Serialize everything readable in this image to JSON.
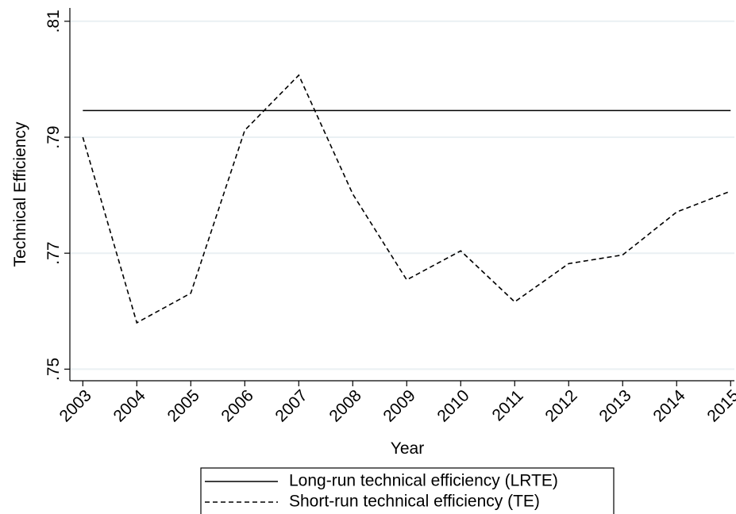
{
  "chart_data": {
    "type": "line",
    "ylabel": "Technical Efficiency",
    "xlabel": "Year",
    "x": [
      2003,
      2004,
      2005,
      2006,
      2007,
      2008,
      2009,
      2010,
      2011,
      2012,
      2013,
      2014,
      2015
    ],
    "series": [
      {
        "name": "Long-run technical efficiency (LRTE)",
        "color": "#000000",
        "line_style": "solid",
        "values": [
          0.7946,
          0.7946,
          0.7946,
          0.7946,
          0.7946,
          0.7946,
          0.7946,
          0.7946,
          0.7946,
          0.7946,
          0.7946,
          0.7946,
          0.7946
        ]
      },
      {
        "name": "Short-run technical efficiency (TE)",
        "color": "#000000",
        "line_style": "dashed",
        "values": [
          0.79,
          0.758,
          0.7631,
          0.7912,
          0.8007,
          0.7802,
          0.7654,
          0.7704,
          0.7616,
          0.7682,
          0.7697,
          0.7771,
          0.7807
        ]
      }
    ],
    "xlim": [
      2002.76,
      2015.07
    ],
    "xticks": [
      2003,
      2004,
      2005,
      2006,
      2007,
      2008,
      2009,
      2010,
      2011,
      2012,
      2013,
      2014,
      2015
    ],
    "ylim": [
      0.748,
      0.8123
    ],
    "yticks": [
      {
        "value": 0.75,
        "label": ".75"
      },
      {
        "value": 0.77,
        "label": ".77"
      },
      {
        "value": 0.79,
        "label": ".79"
      },
      {
        "value": 0.81,
        "label": ".81"
      }
    ],
    "grid": true,
    "legend": "bottom"
  }
}
